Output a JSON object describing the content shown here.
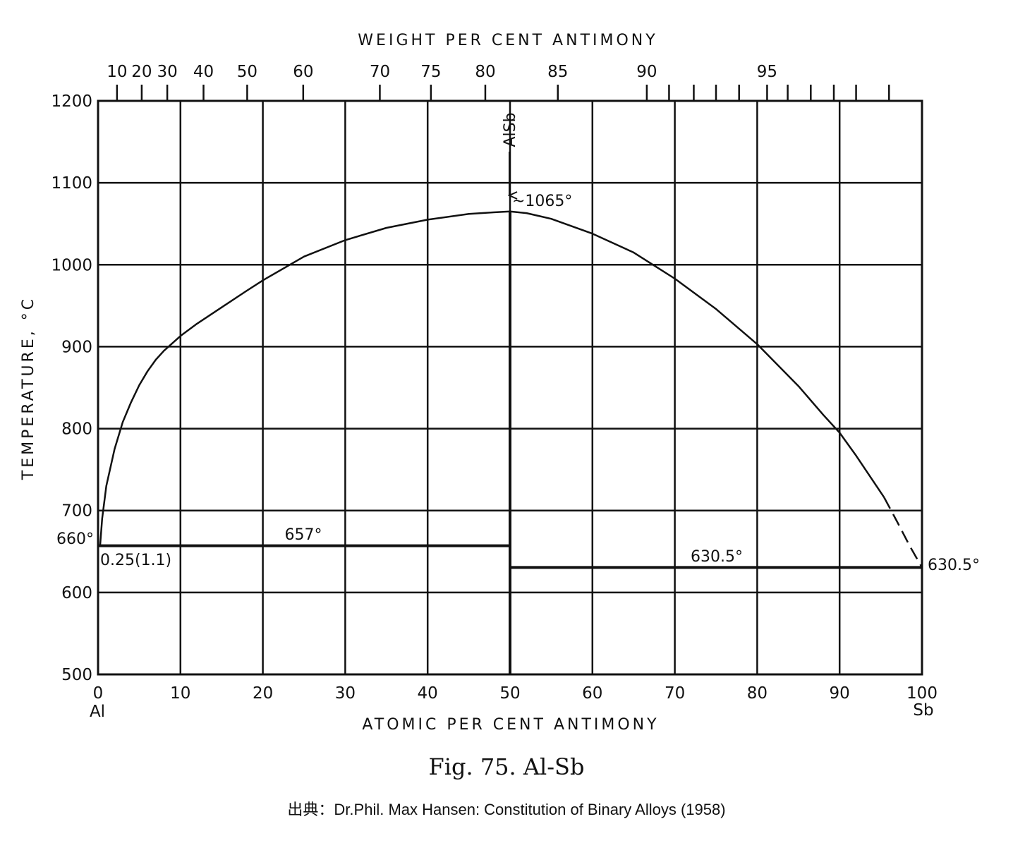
{
  "chart_data": {
    "type": "line",
    "title": "Fig. 75. Al-Sb",
    "source": "出典：Dr.Phil. Max Hansen: Constitution of Binary Alloys (1958)",
    "xlabel": "ATOMIC PER CENT ANTIMONY",
    "x2label": "WEIGHT PER CENT ANTIMONY",
    "ylabel": "TEMPERATURE, °C",
    "xlim": [
      0,
      100
    ],
    "ylim": [
      500,
      1200
    ],
    "grid": true,
    "x_ticks": [
      0,
      10,
      20,
      30,
      40,
      50,
      60,
      70,
      80,
      90,
      100
    ],
    "y_ticks": [
      500,
      600,
      700,
      800,
      900,
      1000,
      1100,
      1200
    ],
    "x_end_labels": {
      "left": "Al",
      "right": "Sb"
    },
    "weight_ticks_labeled": [
      {
        "wt": "10",
        "at": 2.3
      },
      {
        "wt": "20",
        "at": 5.3
      },
      {
        "wt": "30",
        "at": 8.4
      },
      {
        "wt": "40",
        "at": 12.8
      },
      {
        "wt": "50",
        "at": 18.1
      },
      {
        "wt": "60",
        "at": 24.9
      },
      {
        "wt": "70",
        "at": 34.2
      },
      {
        "wt": "75",
        "at": 40.4
      },
      {
        "wt": "80",
        "at": 47.0
      },
      {
        "wt": "85",
        "at": 55.8
      },
      {
        "wt": "90",
        "at": 66.6
      },
      {
        "wt": "95",
        "at": 81.2
      }
    ],
    "weight_ticks_minor_at": [
      69.3,
      72.3,
      75.0,
      77.8,
      83.7,
      86.5,
      89.3,
      92.0,
      96.0
    ],
    "series": [
      {
        "style": "solid",
        "x": [
          0.25,
          0.5,
          1,
          2,
          3,
          4,
          5,
          6,
          7,
          8,
          10,
          12,
          15,
          18,
          20,
          25,
          30,
          35,
          40,
          45,
          48,
          50
        ],
        "y": [
          657,
          690,
          730,
          775,
          808,
          832,
          853,
          870,
          884,
          895,
          913,
          928,
          948,
          968,
          981,
          1010,
          1030,
          1045,
          1055,
          1062,
          1064,
          1065
        ]
      },
      {
        "style": "solid",
        "x": [
          50,
          52,
          55,
          60,
          65,
          70,
          75,
          80,
          85,
          88,
          90,
          92,
          95.4
        ],
        "y": [
          1065,
          1063,
          1056,
          1038,
          1015,
          983,
          946,
          903,
          852,
          817,
          795,
          767,
          716
        ]
      },
      {
        "style": "dashed",
        "x": [
          95.4,
          97,
          98.5,
          100
        ],
        "y": [
          716,
          686,
          657,
          630.5
        ]
      }
    ],
    "horizontal_lines": [
      {
        "x": [
          0,
          50
        ],
        "y": 657
      },
      {
        "x": [
          50,
          100
        ],
        "y": 630.5
      }
    ],
    "vertical_lines": [
      {
        "x": 50,
        "y": [
          500,
          1065
        ]
      }
    ],
    "annotations": {
      "compound": "AlSb",
      "max": "~1065°",
      "eutectic": "657°",
      "al_melt": "660°",
      "solubility": "0.25(1.1)",
      "sb_melt_line": "630.5°",
      "sb_melt_end": "630.5°"
    }
  }
}
